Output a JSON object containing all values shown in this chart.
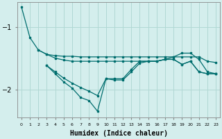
{
  "background_color": "#d4eeed",
  "grid_color": "#b0d8d4",
  "line_color": "#006e6e",
  "xlabel": "Humidex (Indice chaleur)",
  "xlabel_fontsize": 7,
  "yticks": [
    -2,
    -1
  ],
  "xlim": [
    -0.5,
    23.5
  ],
  "ylim": [
    -2.45,
    -0.6
  ],
  "series1": [
    [
      0,
      -0.68
    ],
    [
      1,
      -1.17
    ],
    [
      2,
      -1.37
    ],
    [
      3,
      -1.44
    ],
    [
      4,
      -1.46
    ],
    [
      5,
      -1.47
    ],
    [
      6,
      -1.47
    ],
    [
      7,
      -1.48
    ],
    [
      8,
      -1.48
    ],
    [
      9,
      -1.48
    ],
    [
      10,
      -1.48
    ],
    [
      11,
      -1.48
    ],
    [
      12,
      -1.48
    ],
    [
      13,
      -1.48
    ],
    [
      14,
      -1.48
    ],
    [
      15,
      -1.48
    ],
    [
      16,
      -1.48
    ],
    [
      17,
      -1.48
    ],
    [
      18,
      -1.48
    ],
    [
      19,
      -1.48
    ],
    [
      20,
      -1.48
    ],
    [
      21,
      -1.48
    ],
    [
      22,
      -1.55
    ],
    [
      23,
      -1.57
    ]
  ],
  "series2": [
    [
      2,
      -1.37
    ],
    [
      3,
      -1.44
    ],
    [
      4,
      -1.5
    ],
    [
      5,
      -1.53
    ],
    [
      6,
      -1.55
    ],
    [
      7,
      -1.55
    ],
    [
      8,
      -1.55
    ],
    [
      9,
      -1.55
    ],
    [
      10,
      -1.55
    ],
    [
      11,
      -1.55
    ],
    [
      12,
      -1.55
    ],
    [
      13,
      -1.55
    ],
    [
      14,
      -1.55
    ],
    [
      15,
      -1.55
    ],
    [
      16,
      -1.55
    ],
    [
      17,
      -1.52
    ],
    [
      18,
      -1.48
    ],
    [
      19,
      -1.42
    ],
    [
      20,
      -1.42
    ],
    [
      21,
      -1.52
    ],
    [
      22,
      -1.72
    ],
    [
      23,
      -1.75
    ]
  ],
  "series3": [
    [
      3,
      -1.62
    ],
    [
      4,
      -1.72
    ],
    [
      5,
      -1.82
    ],
    [
      6,
      -1.9
    ],
    [
      7,
      -1.97
    ],
    [
      8,
      -2.03
    ],
    [
      9,
      -2.1
    ],
    [
      10,
      -1.83
    ],
    [
      11,
      -1.85
    ],
    [
      12,
      -1.85
    ],
    [
      13,
      -1.72
    ],
    [
      14,
      -1.58
    ],
    [
      15,
      -1.55
    ],
    [
      16,
      -1.55
    ],
    [
      17,
      -1.52
    ],
    [
      18,
      -1.52
    ],
    [
      19,
      -1.6
    ],
    [
      20,
      -1.55
    ],
    [
      21,
      -1.72
    ],
    [
      22,
      -1.75
    ],
    [
      23,
      -1.75
    ]
  ],
  "series4": [
    [
      3,
      -1.62
    ],
    [
      4,
      -1.75
    ],
    [
      5,
      -1.88
    ],
    [
      6,
      -1.98
    ],
    [
      7,
      -2.13
    ],
    [
      8,
      -2.18
    ],
    [
      9,
      -2.35
    ],
    [
      10,
      -1.83
    ],
    [
      11,
      -1.83
    ],
    [
      12,
      -1.83
    ],
    [
      13,
      -1.68
    ],
    [
      14,
      -1.55
    ],
    [
      15,
      -1.55
    ],
    [
      16,
      -1.55
    ],
    [
      17,
      -1.52
    ],
    [
      18,
      -1.52
    ],
    [
      19,
      -1.6
    ],
    [
      20,
      -1.55
    ],
    [
      21,
      -1.72
    ],
    [
      22,
      -1.75
    ],
    [
      23,
      -1.75
    ]
  ],
  "xtick_labels": [
    "0",
    "1",
    "2",
    "3",
    "4",
    "5",
    "6",
    "7",
    "8",
    "9",
    "10",
    "11",
    "12",
    "13",
    "14",
    "15",
    "16",
    "17",
    "18",
    "19",
    "20",
    "21",
    "22",
    "23"
  ]
}
